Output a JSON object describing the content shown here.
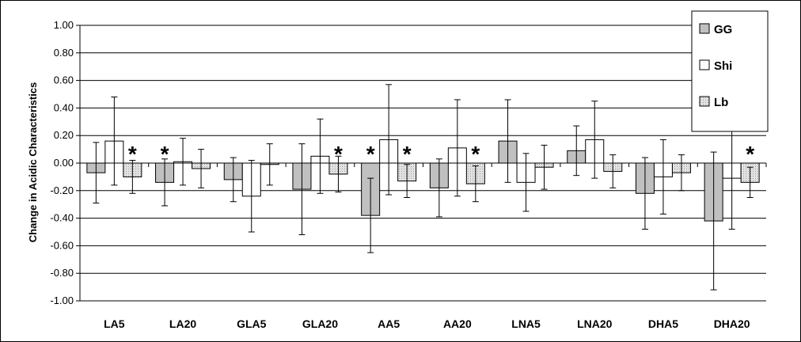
{
  "chart_data": {
    "type": "bar",
    "ylabel": "Change in Acidic Characteristics",
    "ylim": [
      -1.0,
      1.0
    ],
    "yticks": [
      1.0,
      0.8,
      0.6,
      0.4,
      0.2,
      0.0,
      -0.2,
      -0.4,
      -0.6,
      -0.8,
      -1.0
    ],
    "grid": true,
    "legend_position": "top-right",
    "categories": [
      "LA5",
      "LA20",
      "GLA5",
      "GLA20",
      "AA5",
      "AA20",
      "LNA5",
      "LNA20",
      "DHA5",
      "DHA20"
    ],
    "series": [
      {
        "name": "GG",
        "color": "#c0c0c0",
        "values": [
          -0.07,
          -0.14,
          -0.12,
          -0.19,
          -0.38,
          -0.18,
          0.16,
          0.09,
          -0.22,
          -0.42
        ],
        "errors": [
          0.22,
          0.17,
          0.16,
          0.33,
          0.27,
          0.21,
          0.3,
          0.18,
          0.26,
          0.5
        ],
        "significant": [
          false,
          true,
          false,
          false,
          true,
          false,
          false,
          false,
          false,
          false
        ]
      },
      {
        "name": "Shi",
        "color": "#ffffff",
        "values": [
          0.16,
          0.01,
          -0.24,
          0.05,
          0.17,
          0.11,
          -0.14,
          0.17,
          -0.1,
          -0.11
        ],
        "errors": [
          0.32,
          0.17,
          0.26,
          0.27,
          0.4,
          0.35,
          0.21,
          0.28,
          0.27,
          0.37
        ],
        "significant": [
          false,
          false,
          false,
          false,
          false,
          false,
          false,
          false,
          false,
          false
        ]
      },
      {
        "name": "Lb",
        "color": "#d9d9d9",
        "values": [
          -0.1,
          -0.04,
          -0.01,
          -0.08,
          -0.13,
          -0.15,
          -0.03,
          -0.06,
          -0.07,
          -0.14
        ],
        "errors": [
          0.12,
          0.14,
          0.15,
          0.13,
          0.12,
          0.13,
          0.16,
          0.12,
          0.13,
          0.11
        ],
        "significant": [
          true,
          false,
          false,
          true,
          true,
          true,
          false,
          false,
          false,
          true
        ]
      }
    ],
    "significance_marker": "*"
  }
}
